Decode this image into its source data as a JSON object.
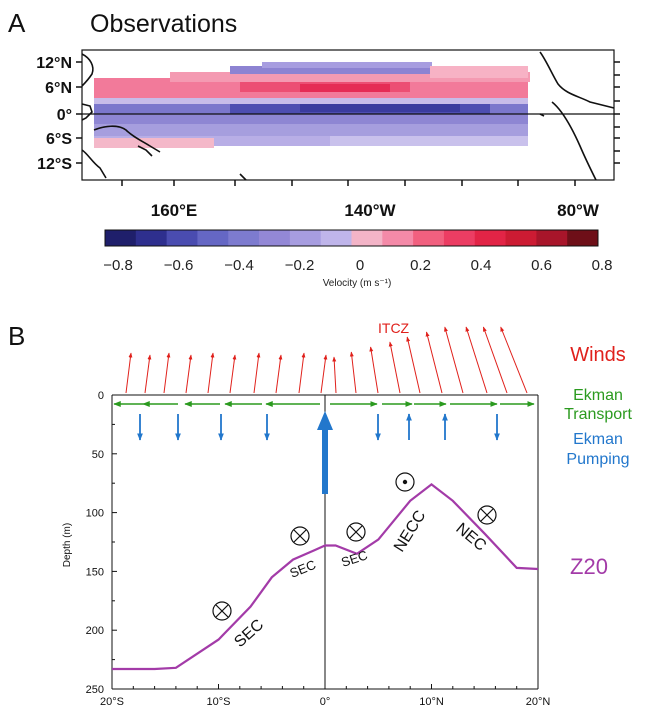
{
  "panel_a": {
    "letter": "A",
    "title": "Observations",
    "lat_labels": [
      "12°N",
      "6°N",
      "0°",
      "6°S",
      "12°S"
    ],
    "lon_labels": [
      "160°E",
      "140°W",
      "80°W"
    ],
    "colorbar": {
      "title": "Velocity (m s⁻¹)",
      "ticks": [
        "−0.8",
        "−0.6",
        "−0.4",
        "−0.2",
        "0",
        "0.2",
        "0.4",
        "0.6",
        "0.8"
      ],
      "colors": [
        "#1f1f6b",
        "#2e2f8e",
        "#4a4cb0",
        "#6567c4",
        "#7d7bcf",
        "#9388d6",
        "#a79de0",
        "#bfb5ea",
        "#f3b4c7",
        "#f48aa8",
        "#f1607f",
        "#ec3d63",
        "#e22446",
        "#cc1b33",
        "#a8152a",
        "#6e0f18"
      ]
    }
  },
  "panel_b": {
    "letter": "B",
    "legend": {
      "winds": "Winds",
      "ekman_line1": "Ekman",
      "ekman_line2": "Transport",
      "pumping_line1": "Ekman",
      "pumping_line2": "Pumping",
      "z20": "Z20"
    },
    "itcz_label": "ITCZ",
    "y_axis_title": "Depth (m)",
    "y_ticks": [
      "0",
      "50",
      "100",
      "150",
      "200",
      "250"
    ],
    "x_ticks": [
      "20°S",
      "10°S",
      "0°",
      "10°N",
      "20°N"
    ],
    "currents": [
      "SEC",
      "SEC",
      "SEC",
      "NECC",
      "NEC"
    ]
  },
  "chart_data": {
    "type": "line",
    "xlabel": "",
    "ylabel": "Depth (m)",
    "xlim": [
      -20,
      20
    ],
    "ylim": [
      250,
      0
    ],
    "series": [
      {
        "name": "Z20",
        "x": [
          -20,
          -16,
          -14,
          -10,
          -7,
          -5,
          -3,
          -1,
          0,
          1,
          3,
          5,
          8,
          10,
          12,
          15,
          18,
          20
        ],
        "y": [
          233,
          233,
          232,
          208,
          180,
          155,
          140,
          132,
          128,
          128,
          135,
          123,
          90,
          76,
          90,
          118,
          147,
          148
        ]
      }
    ],
    "colors": {
      "z20": "#a33ba8",
      "winds": "#e0201b",
      "ekman_transport": "#2b9a1f",
      "ekman_pumping": "#2277cc"
    }
  }
}
